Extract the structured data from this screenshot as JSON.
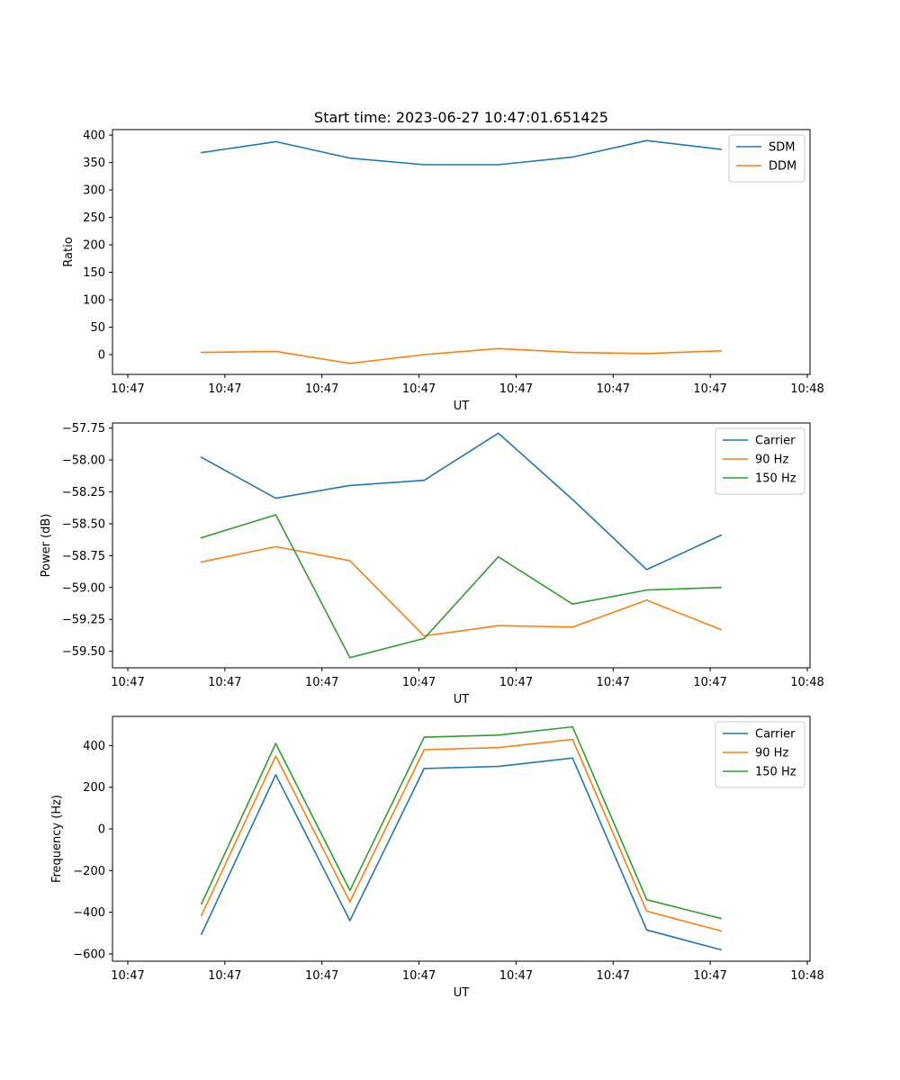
{
  "figure_title": "Start time: 2023-06-27 10:47:01.651425",
  "colors": {
    "blue": "#1f77b4",
    "orange": "#ff7f0e",
    "green": "#2ca02c"
  },
  "chart_data": [
    {
      "type": "line",
      "title": "Start time: 2023-06-27 10:47:01.651425",
      "xlabel": "UT",
      "ylabel": "Ratio",
      "x_tick_labels": [
        "10:47",
        "10:47",
        "10:47",
        "10:47",
        "10:47",
        "10:47",
        "10:47",
        "10:48"
      ],
      "x": [
        1,
        2,
        3,
        4,
        5,
        6,
        7,
        8
      ],
      "xlim": [
        -0.2,
        9.2
      ],
      "ylim": [
        -36,
        410
      ],
      "yticks": [
        0,
        50,
        100,
        150,
        200,
        250,
        300,
        350,
        400
      ],
      "yticks_labels": [
        "0",
        "50",
        "100",
        "150",
        "200",
        "250",
        "300",
        "350",
        "400"
      ],
      "legend_position": "top-right",
      "series": [
        {
          "name": "SDM",
          "color": "#1f77b4",
          "values": [
            368,
            388,
            358,
            346,
            346,
            360,
            390,
            374
          ]
        },
        {
          "name": "DDM",
          "color": "#ff7f0e",
          "values": [
            4,
            6,
            -16,
            0,
            11,
            4,
            2,
            7
          ]
        }
      ]
    },
    {
      "type": "line",
      "title": "",
      "xlabel": "UT",
      "ylabel": "Power (dB)",
      "x_tick_labels": [
        "10:47",
        "10:47",
        "10:47",
        "10:47",
        "10:47",
        "10:47",
        "10:47",
        "10:48"
      ],
      "x": [
        1,
        2,
        3,
        4,
        5,
        6,
        7,
        8
      ],
      "xlim": [
        -0.2,
        9.2
      ],
      "ylim": [
        -59.63,
        -57.71
      ],
      "yticks": [
        -59.5,
        -59.25,
        -59.0,
        -58.75,
        -58.5,
        -58.25,
        -58.0,
        -57.75
      ],
      "yticks_labels": [
        "−59.50",
        "−59.25",
        "−59.00",
        "−58.75",
        "−58.50",
        "−58.25",
        "−58.00",
        "−57.75"
      ],
      "legend_position": "top-right",
      "series": [
        {
          "name": "Carrier",
          "color": "#1f77b4",
          "values": [
            -57.98,
            -58.3,
            -58.2,
            -58.16,
            -57.79,
            -58.31,
            -58.86,
            -58.59
          ]
        },
        {
          "name": "90 Hz",
          "color": "#ff7f0e",
          "values": [
            -58.8,
            -58.68,
            -58.79,
            -59.38,
            -59.3,
            -59.31,
            -59.1,
            -59.33
          ]
        },
        {
          "name": "150 Hz",
          "color": "#2ca02c",
          "values": [
            -58.61,
            -58.43,
            -59.55,
            -59.4,
            -58.76,
            -59.13,
            -59.02,
            -59.0
          ]
        }
      ]
    },
    {
      "type": "line",
      "title": "",
      "xlabel": "UT",
      "ylabel": "Frequency (Hz)",
      "x_tick_labels": [
        "10:47",
        "10:47",
        "10:47",
        "10:47",
        "10:47",
        "10:47",
        "10:47",
        "10:48"
      ],
      "x": [
        1,
        2,
        3,
        4,
        5,
        6,
        7,
        8
      ],
      "xlim": [
        -0.2,
        9.2
      ],
      "ylim": [
        -635,
        540
      ],
      "yticks": [
        -600,
        -400,
        -200,
        0,
        200,
        400
      ],
      "yticks_labels": [
        "−600",
        "−400",
        "−200",
        "0",
        "200",
        "400"
      ],
      "legend_position": "top-right",
      "series": [
        {
          "name": "Carrier",
          "color": "#1f77b4",
          "values": [
            -505,
            260,
            -440,
            290,
            300,
            340,
            -485,
            -580
          ]
        },
        {
          "name": "90 Hz",
          "color": "#ff7f0e",
          "values": [
            -415,
            350,
            -350,
            380,
            390,
            430,
            -395,
            -490
          ]
        },
        {
          "name": "150 Hz",
          "color": "#2ca02c",
          "values": [
            -360,
            410,
            -295,
            440,
            450,
            490,
            -340,
            -430
          ]
        }
      ]
    }
  ]
}
